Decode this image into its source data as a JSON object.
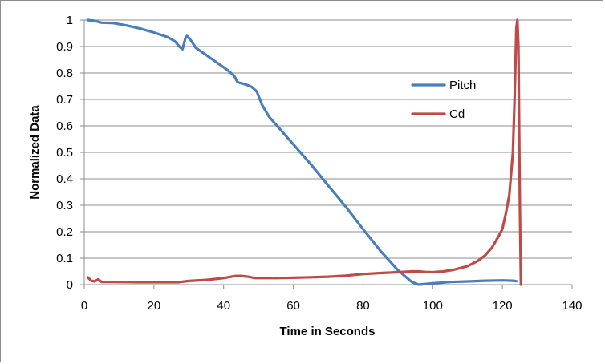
{
  "chart_data": {
    "type": "line",
    "title": "",
    "xlabel": "Time in Seconds",
    "ylabel": "Normalized Data",
    "xlim": [
      0,
      140
    ],
    "ylim": [
      0,
      1
    ],
    "x_ticks": [
      0,
      20,
      40,
      60,
      80,
      100,
      120,
      140
    ],
    "y_ticks": [
      0,
      0.1,
      0.2,
      0.3,
      0.4,
      0.5,
      0.6,
      0.7,
      0.8,
      0.9,
      1
    ],
    "grid": "horizontal",
    "legend": "right",
    "series": [
      {
        "name": "Pitch",
        "color": "#4a7ebb",
        "points": [
          [
            1,
            1.0
          ],
          [
            3,
            0.997
          ],
          [
            5,
            0.99
          ],
          [
            8,
            0.989
          ],
          [
            12,
            0.98
          ],
          [
            16,
            0.968
          ],
          [
            20,
            0.953
          ],
          [
            24,
            0.935
          ],
          [
            26,
            0.92
          ],
          [
            27.5,
            0.897
          ],
          [
            28.2,
            0.89
          ],
          [
            29,
            0.93
          ],
          [
            29.5,
            0.94
          ],
          [
            30.5,
            0.925
          ],
          [
            32,
            0.895
          ],
          [
            35,
            0.868
          ],
          [
            38,
            0.84
          ],
          [
            41,
            0.812
          ],
          [
            43,
            0.79
          ],
          [
            44,
            0.765
          ],
          [
            46,
            0.758
          ],
          [
            48,
            0.748
          ],
          [
            49.5,
            0.73
          ],
          [
            51,
            0.68
          ],
          [
            53,
            0.635
          ],
          [
            55,
            0.605
          ],
          [
            60,
            0.53
          ],
          [
            65,
            0.455
          ],
          [
            70,
            0.375
          ],
          [
            75,
            0.295
          ],
          [
            80,
            0.21
          ],
          [
            85,
            0.128
          ],
          [
            90,
            0.055
          ],
          [
            94,
            0.01
          ],
          [
            96,
            0.0
          ],
          [
            100,
            0.005
          ],
          [
            105,
            0.01
          ],
          [
            110,
            0.012
          ],
          [
            115,
            0.015
          ],
          [
            120,
            0.016
          ],
          [
            123,
            0.015
          ],
          [
            124,
            0.013
          ]
        ]
      },
      {
        "name": "Cd",
        "color": "#be4b48",
        "points": [
          [
            1,
            0.028
          ],
          [
            2,
            0.015
          ],
          [
            3,
            0.012
          ],
          [
            4,
            0.02
          ],
          [
            5,
            0.01
          ],
          [
            8,
            0.01
          ],
          [
            15,
            0.009
          ],
          [
            20,
            0.009
          ],
          [
            27,
            0.009
          ],
          [
            30,
            0.014
          ],
          [
            35,
            0.018
          ],
          [
            40,
            0.025
          ],
          [
            43,
            0.032
          ],
          [
            45,
            0.033
          ],
          [
            47,
            0.03
          ],
          [
            49,
            0.025
          ],
          [
            55,
            0.025
          ],
          [
            60,
            0.026
          ],
          [
            65,
            0.028
          ],
          [
            70,
            0.03
          ],
          [
            75,
            0.034
          ],
          [
            80,
            0.04
          ],
          [
            85,
            0.044
          ],
          [
            90,
            0.047
          ],
          [
            94,
            0.05
          ],
          [
            96,
            0.05
          ],
          [
            98,
            0.048
          ],
          [
            100,
            0.047
          ],
          [
            103,
            0.05
          ],
          [
            106,
            0.056
          ],
          [
            110,
            0.07
          ],
          [
            113,
            0.09
          ],
          [
            115,
            0.11
          ],
          [
            117,
            0.14
          ],
          [
            119,
            0.185
          ],
          [
            120,
            0.21
          ],
          [
            121,
            0.27
          ],
          [
            122,
            0.34
          ],
          [
            123,
            0.5
          ],
          [
            123.5,
            0.7
          ],
          [
            124,
            0.97
          ],
          [
            124.3,
            1.0
          ],
          [
            124.6,
            0.9
          ],
          [
            125,
            0.3
          ],
          [
            125.3,
            0.0
          ]
        ]
      }
    ]
  }
}
